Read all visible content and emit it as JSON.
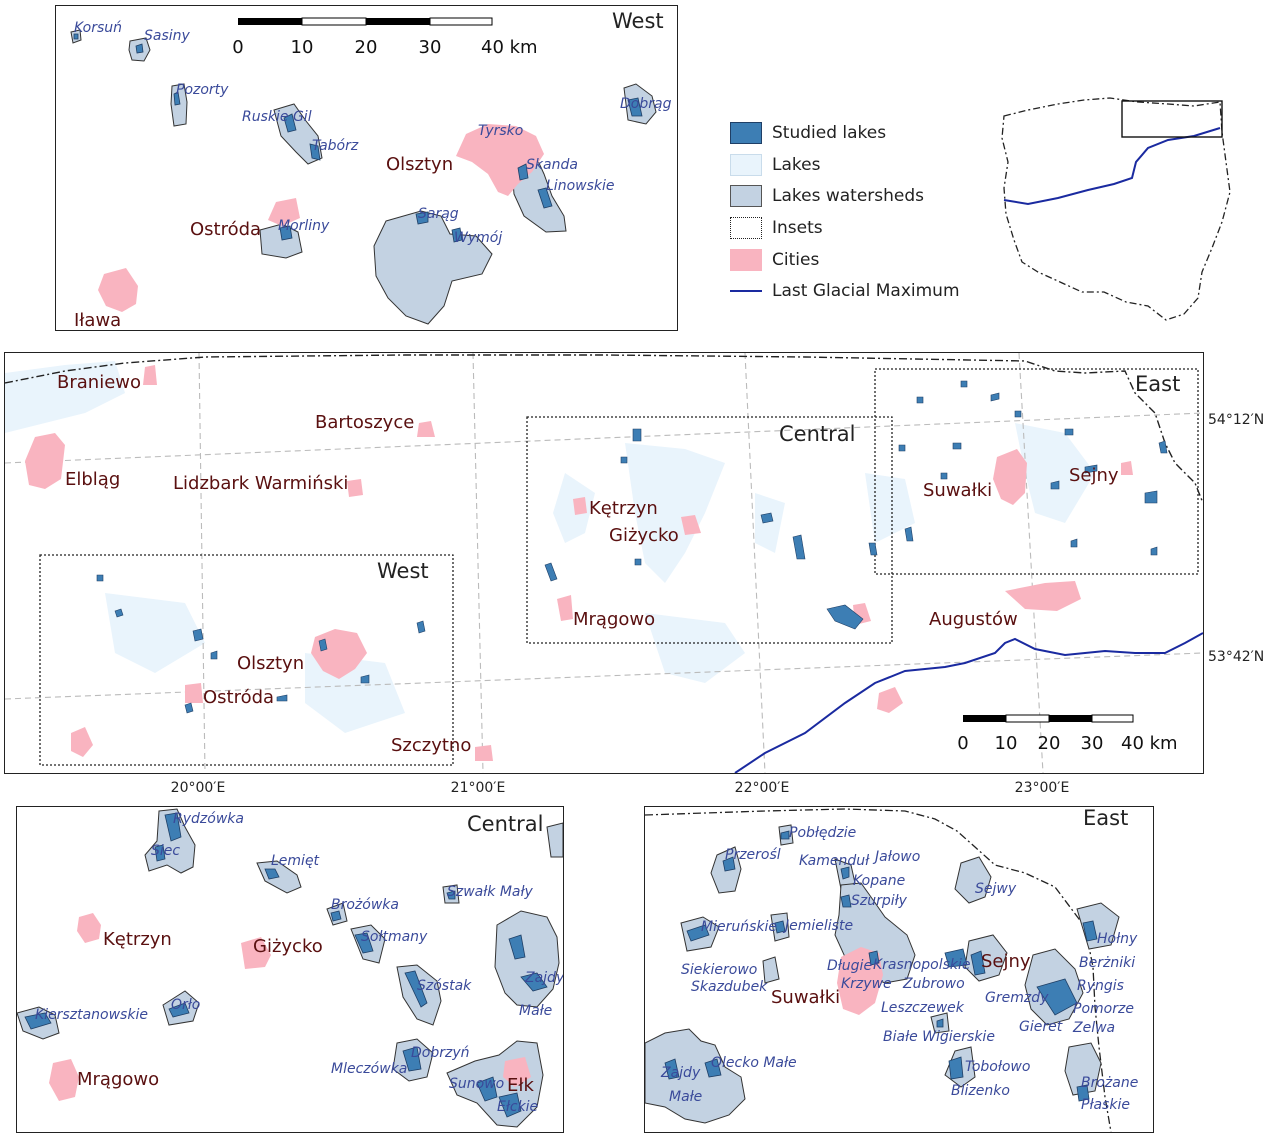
{
  "colors": {
    "studied_lakes": "#3d7eb4",
    "lakes": "#e9f4fc",
    "watersheds": "#c3d2e2",
    "cities": "#f9b4c0",
    "glacial_line": "#1a2aa0",
    "city_text": "#5a1010",
    "lake_text": "#3a4a9a"
  },
  "legend": {
    "items": [
      {
        "label": "Studied lakes",
        "icon": "filled-dark-blue-square"
      },
      {
        "label": "Lakes",
        "icon": "pale-blue-square"
      },
      {
        "label": "Lakes watersheds",
        "icon": "grey-blue-square"
      },
      {
        "label": "Insets",
        "icon": "dashed-square"
      },
      {
        "label": "Cities",
        "icon": "pink-square"
      },
      {
        "label": "Last Glacial Maximum",
        "icon": "blue-line"
      }
    ]
  },
  "west_inset": {
    "title": "West",
    "scale": {
      "ticks": [
        "0",
        "10",
        "20",
        "30",
        "40 km"
      ]
    },
    "cities": [
      "Olsztyn",
      "Ostróda",
      "Iława"
    ],
    "lakes": [
      "Korsuń",
      "Sasiny",
      "Pozorty",
      "Ruskie Gil",
      "Tabórz",
      "Tyrsko",
      "Skanda",
      "Linowskie",
      "Dobrąg",
      "Sarąg",
      "Wymój",
      "Morliny"
    ]
  },
  "main_map": {
    "insets": [
      "West",
      "Central",
      "East"
    ],
    "cities": [
      "Braniewo",
      "Elbląg",
      "Bartoszyce",
      "Lidzbark Warmiński",
      "Kętrzyn",
      "Giżycko",
      "Mrągowo",
      "Olsztyn",
      "Ostróda",
      "Szczytno",
      "Suwałki",
      "Sejny",
      "Augustów"
    ],
    "lon_labels": [
      "20°00′E",
      "21°00′E",
      "22°00′E",
      "23°00′E"
    ],
    "lat_labels": [
      "54°12′N",
      "53°42′N"
    ],
    "scale": {
      "ticks": [
        "0",
        "10",
        "20",
        "30",
        "40 km"
      ]
    }
  },
  "central_inset": {
    "title": "Central",
    "cities": [
      "Kętrzyn",
      "Giżycko",
      "Mrągowo",
      "Ełk"
    ],
    "lakes": [
      "Rydzówka",
      "Siec",
      "Lemięt",
      "Brożówka",
      "Szwałk Mały",
      "Sołtmany",
      "Szóstak",
      "Zajdy",
      "Małe",
      "Kiersztanowskie",
      "Orło",
      "Dobrzyń",
      "Mleczówka",
      "Sunowo",
      "Ełckie"
    ]
  },
  "east_inset": {
    "title": "East",
    "cities": [
      "Suwałki",
      "Sejny"
    ],
    "lakes": [
      "Pobłędzie",
      "Przerośl",
      "Kamenduł",
      "Jałowo",
      "Kopane",
      "Szurpiły",
      "Sejwy",
      "Mieruńskie",
      "Jemieliste",
      "Hołny",
      "Siekierowo",
      "Skazdubek",
      "Długie",
      "Krasnopolskie",
      "Berżniki",
      "Krzywe",
      "Zubrowo",
      "Gremzdy",
      "Ryngis",
      "Leszczewek",
      "Pomorze",
      "Gieret",
      "Zelwa",
      "Białe Wigierskie",
      "Olecko Małe",
      "Zajdy",
      "Małe",
      "Tobołowo",
      "Blizenko",
      "Brożane",
      "Płaskie"
    ]
  }
}
